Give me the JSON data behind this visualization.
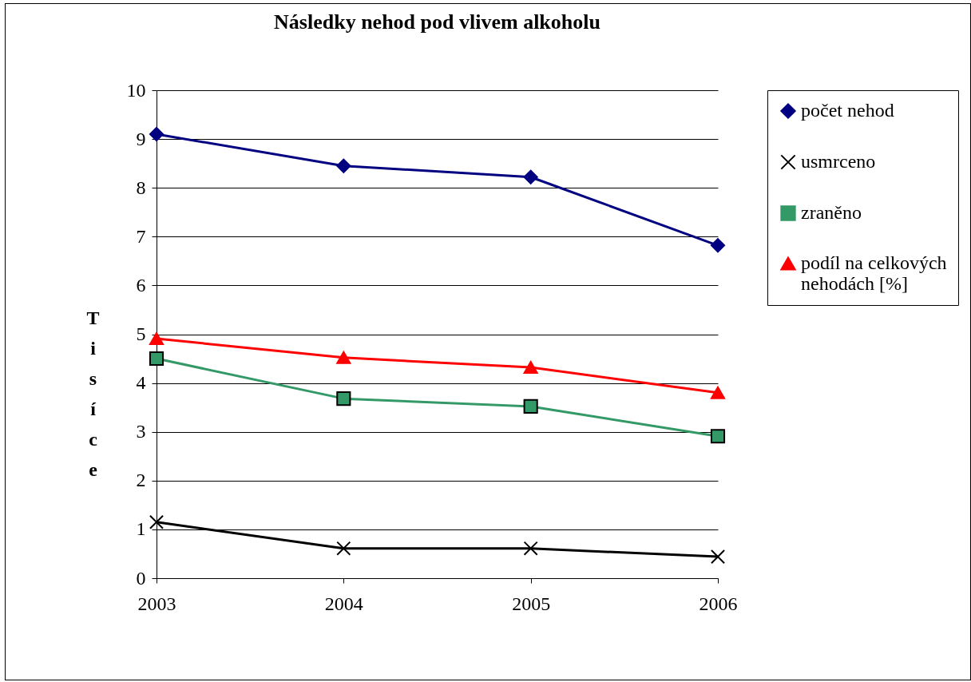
{
  "chart_data": {
    "type": "line",
    "title": "Následky nehod pod vlivem alkoholu",
    "ylabel": "Tisíce",
    "categories": [
      "2003",
      "2004",
      "2005",
      "2006"
    ],
    "series": [
      {
        "name": "počet nehod",
        "color": "#000080",
        "marker": "diamond",
        "values": [
          9.1,
          8.45,
          8.22,
          6.82
        ]
      },
      {
        "name": "usmrceno",
        "color": "#000000",
        "marker": "cross",
        "values": [
          1.15,
          0.61,
          0.61,
          0.44
        ]
      },
      {
        "name": "zraněno",
        "color": "#339966",
        "marker": "square",
        "values": [
          4.5,
          3.68,
          3.52,
          2.91
        ]
      },
      {
        "name": "podíl na celkových nehodách [%]",
        "color": "#ff0000",
        "marker": "triangle",
        "values": [
          4.91,
          4.52,
          4.32,
          3.8
        ]
      }
    ],
    "ylim": [
      0,
      10
    ],
    "yticks": [
      0,
      1,
      2,
      3,
      4,
      5,
      6,
      7,
      8,
      9,
      10
    ],
    "grid": "y",
    "legend": "right"
  }
}
